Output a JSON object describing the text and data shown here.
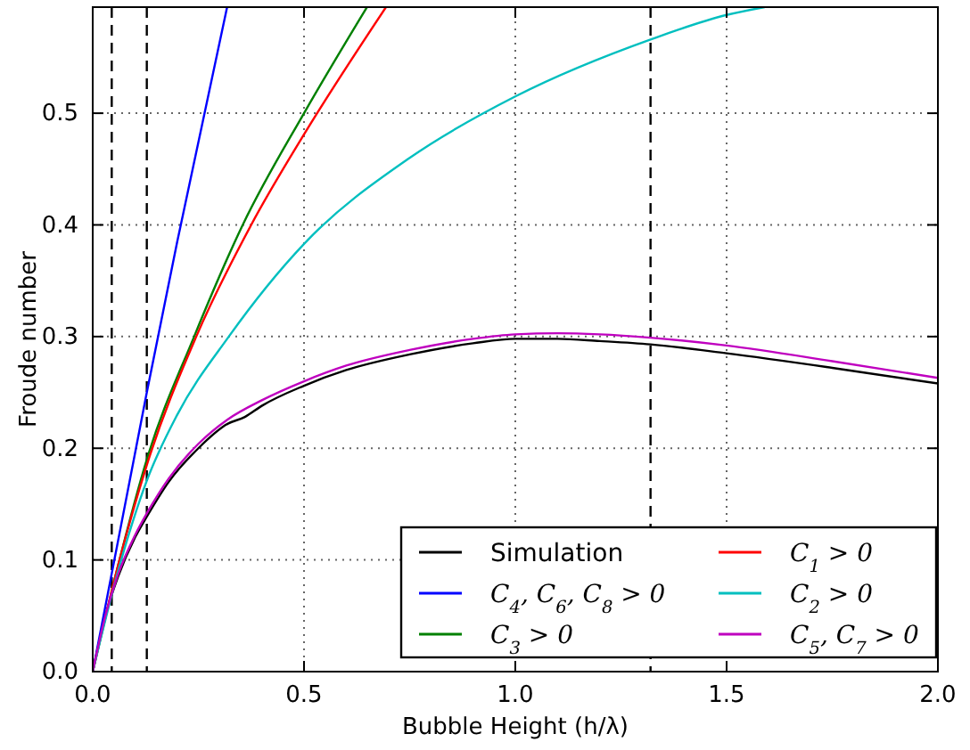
{
  "chart_data": {
    "type": "line",
    "xlabel": "Bubble Height (h/λ)",
    "ylabel": "Froude number",
    "xlim": [
      0,
      2.0
    ],
    "ylim": [
      0,
      0.595
    ],
    "xticks": [
      {
        "value": 0,
        "label": "0.0"
      },
      {
        "value": 0.5,
        "label": "0.5"
      },
      {
        "value": 1.0,
        "label": "1.0"
      },
      {
        "value": 1.5,
        "label": "1.5"
      },
      {
        "value": 2.0,
        "label": "2.0"
      }
    ],
    "yticks": [
      {
        "value": 0,
        "label": "0.0"
      },
      {
        "value": 0.1,
        "label": "0.1"
      },
      {
        "value": 0.2,
        "label": "0.2"
      },
      {
        "value": 0.3,
        "label": "0.3"
      },
      {
        "value": 0.4,
        "label": "0.4"
      },
      {
        "value": 0.5,
        "label": "0.5"
      }
    ],
    "grid": true,
    "legend": "bottom right",
    "marker": "none",
    "line_style": "solid",
    "ref_lines": [
      {
        "axis": "x",
        "value": 0.045,
        "color": "#000000",
        "line_style": "dashed"
      },
      {
        "axis": "x",
        "value": 0.128,
        "color": "#000000",
        "line_style": "dashed"
      },
      {
        "axis": "x",
        "value": 1.32,
        "color": "#000000",
        "line_style": "dashed"
      }
    ],
    "series": [
      {
        "name": "Simulation",
        "color": "#000000",
        "x": [
          0,
          0.03,
          0.06,
          0.1,
          0.13,
          0.18,
          0.25,
          0.32,
          0.36,
          0.4,
          0.5,
          0.6,
          0.75,
          0.9,
          1.0,
          1.1,
          1.2,
          1.32,
          1.5,
          1.75,
          2.0
        ],
        "values": [
          0,
          0.05,
          0.085,
          0.12,
          0.14,
          0.17,
          0.2,
          0.222,
          0.228,
          0.238,
          0.256,
          0.27,
          0.284,
          0.294,
          0.298,
          0.298,
          0.296,
          0.293,
          0.285,
          0.272,
          0.258
        ]
      },
      {
        "name": "C$_{4}$, C$_{6}$, C$_{8}$ > 0",
        "color": "#0000ff",
        "x": [
          0,
          0.128,
          0.2,
          0.318
        ],
        "values": [
          0,
          0.25,
          0.385,
          0.595
        ]
      },
      {
        "name": "C$_{3}$ > 0",
        "color": "#008000",
        "x": [
          0,
          0.06,
          0.128,
          0.24,
          0.355,
          0.5,
          0.649
        ],
        "values": [
          0,
          0.095,
          0.19,
          0.3,
          0.4,
          0.5,
          0.595
        ]
      },
      {
        "name": "C$_{1}$ > 0",
        "color": "#ff0000",
        "x": [
          0,
          0.06,
          0.128,
          0.245,
          0.375,
          0.5,
          0.694
        ],
        "values": [
          0,
          0.095,
          0.185,
          0.3,
          0.4,
          0.481,
          0.595
        ]
      },
      {
        "name": "C$_{2}$ > 0",
        "color": "#00bfbf",
        "x": [
          0,
          0.06,
          0.128,
          0.2,
          0.322,
          0.5,
          0.75,
          1.0,
          1.32,
          1.5,
          1.59
        ],
        "values": [
          0,
          0.09,
          0.171,
          0.23,
          0.3,
          0.383,
          0.46,
          0.515,
          0.566,
          0.588,
          0.595
        ]
      },
      {
        "name": "C$_{5}$, C$_{7}$ > 0",
        "color": "#bf00bf",
        "x": [
          0,
          0.03,
          0.06,
          0.1,
          0.13,
          0.18,
          0.25,
          0.32,
          0.4,
          0.5,
          0.6,
          0.75,
          0.9,
          1.0,
          1.1,
          1.2,
          1.32,
          1.5,
          1.75,
          2.0
        ],
        "values": [
          0,
          0.05,
          0.087,
          0.122,
          0.143,
          0.173,
          0.204,
          0.226,
          0.243,
          0.26,
          0.274,
          0.288,
          0.298,
          0.302,
          0.303,
          0.302,
          0.299,
          0.292,
          0.278,
          0.263
        ]
      }
    ]
  }
}
